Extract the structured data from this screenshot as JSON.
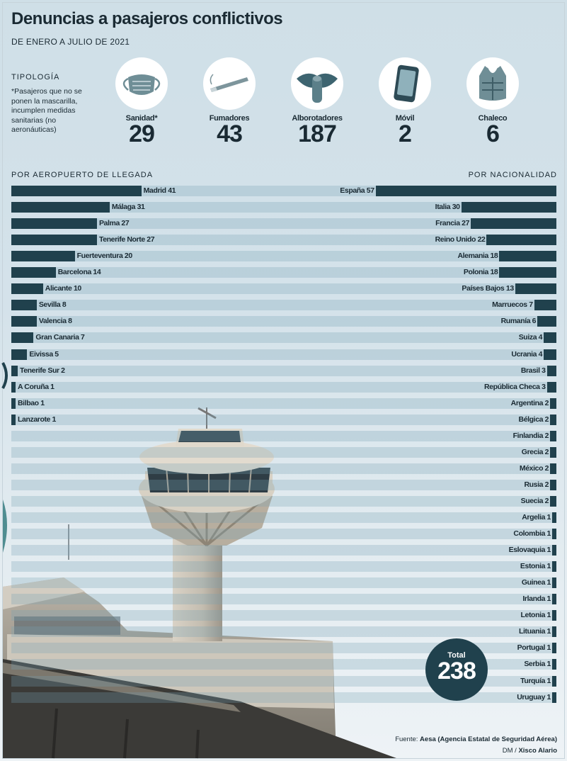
{
  "title": "Denuncias a pasajeros conflictivos",
  "subtitle": "DE ENERO A JULIO DE 2021",
  "tipologia": {
    "heading": "TIPOLOGÍA",
    "note": "*Pasajeros que no se ponen la mascarilla, incumplen medidas sanitarias (no aeronáuticas)",
    "items": [
      {
        "label": "Sanidad*",
        "value": "29",
        "icon": "mask-icon"
      },
      {
        "label": "Fumadores",
        "value": "43",
        "icon": "cigarette-icon"
      },
      {
        "label": "Alborotadores",
        "value": "187",
        "icon": "mouth-shush-icon"
      },
      {
        "label": "Móvil",
        "value": "2",
        "icon": "phone-icon"
      },
      {
        "label": "Chaleco",
        "value": "6",
        "icon": "life-vest-icon"
      }
    ]
  },
  "section_left": "POR AEROPUERTO DE LLEGADA",
  "section_right": "POR NACIONALIDAD",
  "total": {
    "label": "Total",
    "value": "238"
  },
  "source": {
    "prefix": "Fuente:",
    "text": "Aesa (Agencia Estatal de Seguridad Aérea)"
  },
  "credit": {
    "prefix": "DM /",
    "text": "Xisco Alario"
  },
  "colors": {
    "bar": "#20414d",
    "stripe": "#9fbccb",
    "background": "#d4e2ea"
  },
  "chart_data": [
    {
      "type": "bar",
      "title": "POR AEROPUERTO DE LLEGADA",
      "orientation": "horizontal",
      "categories": [
        "Madrid",
        "Málaga",
        "Palma",
        "Tenerife Norte",
        "Fuerteventura",
        "Barcelona",
        "Alicante",
        "Sevilla",
        "Valencia",
        "Gran Canaria",
        "Eivissa",
        "Tenerife Sur",
        "A Coruña",
        "Bilbao",
        "Lanzarote"
      ],
      "values": [
        41,
        31,
        27,
        27,
        20,
        14,
        10,
        8,
        8,
        7,
        5,
        2,
        1,
        1,
        1
      ]
    },
    {
      "type": "bar",
      "title": "POR NACIONALIDAD",
      "orientation": "horizontal",
      "categories": [
        "España",
        "Italia",
        "Francia",
        "Reino Unido",
        "Alemania",
        "Polonia",
        "Países Bajos",
        "Marruecos",
        "Rumanía",
        "Suiza",
        "Ucrania",
        "Brasil",
        "República Checa",
        "Argentina",
        "Bélgica",
        "Finlandia",
        "Grecia",
        "México",
        "Rusia",
        "Suecia",
        "Argelia",
        "Colombia",
        "Eslovaquia",
        "Estonia",
        "Guinea",
        "Irlanda",
        "Letonia",
        "Lituania",
        "Portugal",
        "Serbia",
        "Turquía",
        "Uruguay"
      ],
      "values": [
        57,
        30,
        27,
        22,
        18,
        18,
        13,
        7,
        6,
        4,
        4,
        3,
        3,
        2,
        2,
        2,
        2,
        2,
        2,
        2,
        1,
        1,
        1,
        1,
        1,
        1,
        1,
        1,
        1,
        1,
        1,
        1
      ]
    }
  ]
}
